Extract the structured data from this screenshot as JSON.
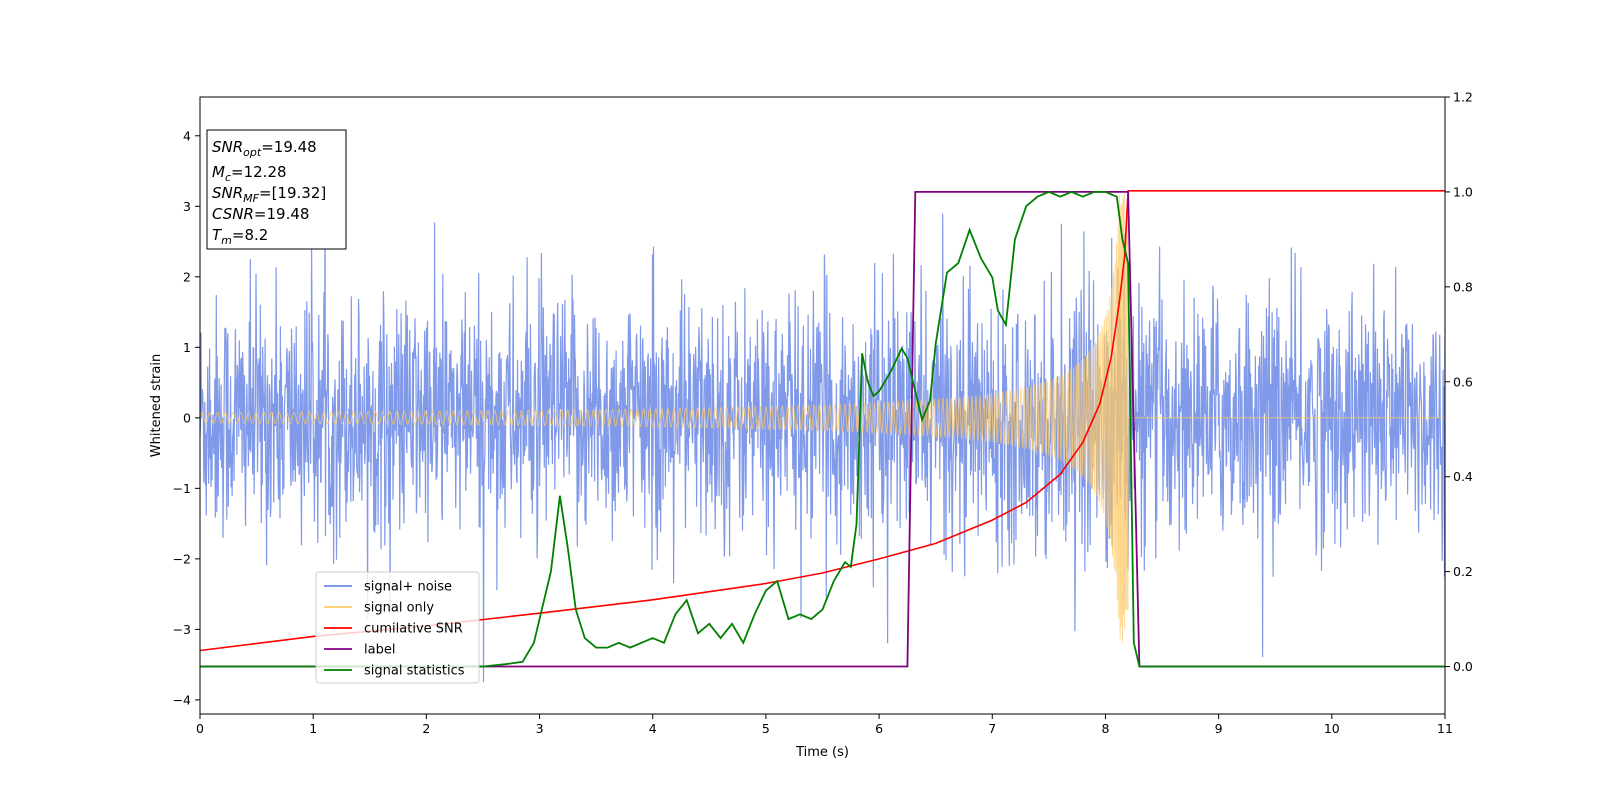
{
  "chart_data": {
    "type": "line",
    "xlabel": "Time (s)",
    "ylabel": "Whitened strain",
    "xlim": [
      0,
      11
    ],
    "ylim_left": [
      -4.2,
      4.55
    ],
    "ylim_right": [
      -0.1,
      1.2
    ],
    "x_ticks": [
      0,
      1,
      2,
      3,
      4,
      5,
      6,
      7,
      8,
      9,
      10,
      11
    ],
    "y_ticks_left": [
      -4,
      -3,
      -2,
      -1,
      0,
      1,
      2,
      3,
      4
    ],
    "y_ticks_right": [
      0.0,
      0.2,
      0.4,
      0.6,
      0.8,
      1.0,
      1.2
    ],
    "info_box": {
      "snr_opt": {
        "base": "SNR",
        "sub": "opt",
        "value": "=19.48"
      },
      "mc": {
        "base": "M",
        "sub": "c",
        "value": "=12.28"
      },
      "snr_mf": {
        "base": "SNR",
        "sub": "MF",
        "value": "=[19.32]"
      },
      "csnr": {
        "base": "CSNR",
        "value": "=19.48"
      },
      "tm": {
        "base": "T",
        "sub": "m",
        "value": "=8.2"
      }
    },
    "legend": {
      "placement": "lower-left",
      "entries": [
        {
          "label": "signal+ noise",
          "color": "#6d8ae6"
        },
        {
          "label": "signal only",
          "color": "#ffc966"
        },
        {
          "label": "cumilative SNR",
          "color": "#ff0000"
        },
        {
          "label": "label",
          "color": "#800080"
        },
        {
          "label": "signal statistics",
          "color": "#008000"
        }
      ]
    },
    "series": [
      {
        "name": "signal+ noise",
        "axis": "left",
        "color": "#7994e8",
        "description": "white Gaussian noise plus chirp, amplitude ~ +/-2.5, occasional spikes to +/-4"
      },
      {
        "name": "signal only",
        "axis": "left",
        "color": "#ffc966",
        "chirp_end": 8.2,
        "description": "chirp growing toward merger at t=8.2, zero afterwards"
      },
      {
        "name": "cumilative SNR",
        "axis": "left",
        "color": "#ff0000",
        "x": [
          0,
          1,
          2,
          3,
          4,
          5,
          5.5,
          6,
          6.5,
          7,
          7.3,
          7.6,
          7.8,
          7.95,
          8.05,
          8.12,
          8.17,
          8.2,
          11
        ],
        "y": [
          -3.3,
          -3.1,
          -2.95,
          -2.77,
          -2.58,
          -2.35,
          -2.2,
          -2.0,
          -1.78,
          -1.45,
          -1.2,
          -0.8,
          -0.35,
          0.2,
          0.85,
          1.6,
          2.3,
          3.22,
          3.22
        ]
      },
      {
        "name": "label",
        "axis": "right",
        "color": "#800080",
        "x": [
          0,
          6.25,
          6.32,
          8.2,
          8.3,
          11
        ],
        "y": [
          0,
          0,
          1,
          1,
          0,
          0
        ]
      },
      {
        "name": "signal statistics",
        "axis": "right",
        "color": "#008000",
        "x": [
          0,
          0.5,
          1,
          1.5,
          2,
          2.5,
          2.7,
          2.85,
          2.95,
          3.02,
          3.1,
          3.18,
          3.25,
          3.32,
          3.4,
          3.5,
          3.6,
          3.7,
          3.8,
          3.9,
          4.0,
          4.1,
          4.2,
          4.3,
          4.4,
          4.5,
          4.6,
          4.7,
          4.8,
          4.9,
          5.0,
          5.1,
          5.2,
          5.3,
          5.4,
          5.5,
          5.6,
          5.7,
          5.75,
          5.8,
          5.85,
          5.9,
          5.95,
          6.0,
          6.1,
          6.2,
          6.25,
          6.3,
          6.38,
          6.45,
          6.5,
          6.6,
          6.7,
          6.8,
          6.9,
          7.0,
          7.05,
          7.12,
          7.2,
          7.3,
          7.4,
          7.5,
          7.6,
          7.7,
          7.8,
          7.9,
          8.0,
          8.1,
          8.15,
          8.2,
          8.25,
          8.3,
          8.4,
          9,
          10,
          11
        ],
        "y": [
          0,
          0,
          0,
          0,
          0,
          0,
          0.005,
          0.01,
          0.05,
          0.12,
          0.2,
          0.36,
          0.25,
          0.12,
          0.06,
          0.04,
          0.04,
          0.05,
          0.04,
          0.05,
          0.06,
          0.05,
          0.11,
          0.14,
          0.07,
          0.09,
          0.06,
          0.09,
          0.05,
          0.11,
          0.16,
          0.18,
          0.1,
          0.11,
          0.1,
          0.12,
          0.18,
          0.22,
          0.21,
          0.3,
          0.66,
          0.6,
          0.57,
          0.58,
          0.62,
          0.67,
          0.65,
          0.6,
          0.52,
          0.56,
          0.68,
          0.83,
          0.85,
          0.92,
          0.86,
          0.82,
          0.75,
          0.72,
          0.9,
          0.97,
          0.99,
          1.0,
          0.99,
          1.0,
          0.99,
          1.0,
          1.0,
          0.99,
          0.9,
          0.85,
          0.05,
          0.0,
          0.0,
          0.0,
          0.0,
          0.0
        ]
      }
    ]
  }
}
